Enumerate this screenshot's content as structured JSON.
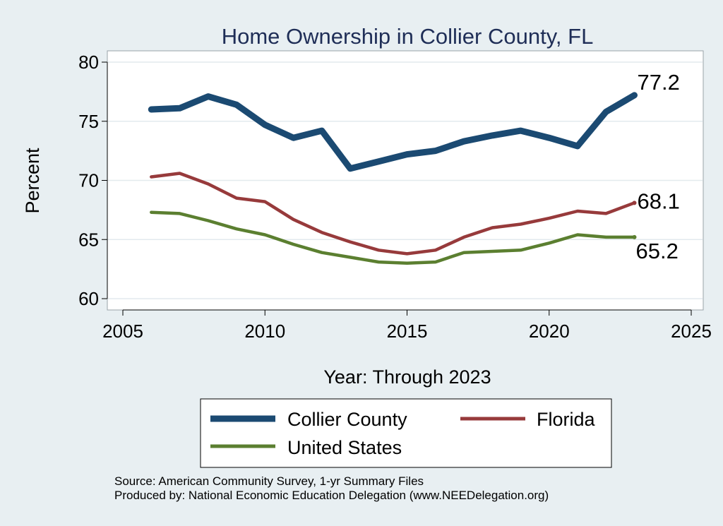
{
  "chart_data": {
    "type": "line",
    "title": "Home Ownership in Collier County, FL",
    "xlabel": "Year: Through 2023",
    "ylabel": "Percent",
    "xlim": [
      2005,
      2025
    ],
    "ylim": [
      60,
      80
    ],
    "x_ticks": [
      "2005",
      "2010",
      "2015",
      "2020",
      "2025"
    ],
    "y_ticks": [
      "60",
      "65",
      "70",
      "75",
      "80"
    ],
    "grid": true,
    "legend_position": "bottom",
    "series": [
      {
        "name": "Collier County",
        "color": "#1b4a72",
        "x": [
          2006,
          2007,
          2008,
          2009,
          2010,
          2011,
          2012,
          2013,
          2014,
          2015,
          2016,
          2017,
          2018,
          2019,
          2020,
          2021,
          2022,
          2023
        ],
        "y": [
          76.0,
          76.1,
          77.1,
          76.4,
          74.7,
          73.6,
          74.2,
          71.0,
          71.6,
          72.2,
          72.5,
          73.3,
          73.8,
          74.2,
          73.6,
          72.9,
          75.8,
          77.2
        ],
        "end_label": "77.2"
      },
      {
        "name": "Florida",
        "color": "#973a3b",
        "x": [
          2006,
          2007,
          2008,
          2009,
          2010,
          2011,
          2012,
          2013,
          2014,
          2015,
          2016,
          2017,
          2018,
          2019,
          2020,
          2021,
          2022,
          2023
        ],
        "y": [
          70.3,
          70.6,
          69.7,
          68.5,
          68.2,
          66.7,
          65.6,
          64.8,
          64.1,
          63.8,
          64.1,
          65.2,
          66.0,
          66.3,
          66.8,
          67.4,
          67.2,
          68.1
        ],
        "end_label": "68.1"
      },
      {
        "name": "United States",
        "color": "#5b7f30",
        "x": [
          2006,
          2007,
          2008,
          2009,
          2010,
          2011,
          2012,
          2013,
          2014,
          2015,
          2016,
          2017,
          2018,
          2019,
          2020,
          2021,
          2022,
          2023
        ],
        "y": [
          67.3,
          67.2,
          66.6,
          65.9,
          65.4,
          64.6,
          63.9,
          63.5,
          63.1,
          63.0,
          63.1,
          63.9,
          64.0,
          64.1,
          64.7,
          65.4,
          65.2,
          65.2
        ],
        "end_label": "65.2"
      }
    ]
  },
  "footer": {
    "source": "Source: American Community Survey, 1-yr Summary Files",
    "produced_by": "Produced by: National Economic Education Delegation (www.NEEDelegation.org)"
  }
}
